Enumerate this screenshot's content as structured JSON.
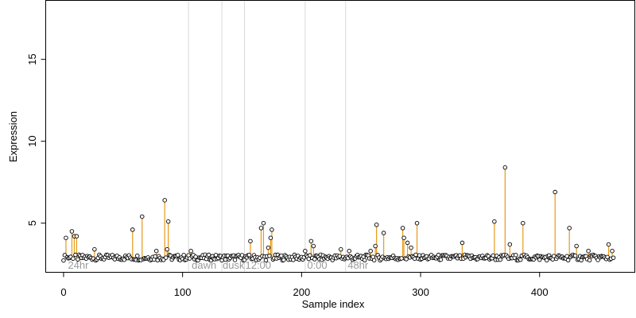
{
  "chart_data": {
    "type": "scatter",
    "xlabel": "Sample index",
    "ylabel": "Expression",
    "xlim": [
      -15,
      480
    ],
    "ylim": [
      2.0,
      18.6
    ],
    "x_ticks": [
      0,
      100,
      200,
      300,
      400
    ],
    "y_ticks": [
      5,
      10,
      15
    ],
    "baseline": 2.9,
    "colors": {
      "stem": "#e69a19",
      "divider": "#d9d9d9",
      "region_label": "#9a9a9a",
      "point": "#000000"
    },
    "dividers": [
      105,
      133,
      152,
      203,
      237
    ],
    "region_labels": [
      {
        "x": 3,
        "text": "24hr"
      },
      {
        "x": 107,
        "text": "dawn"
      },
      {
        "x": 133,
        "text": "dusk"
      },
      {
        "x": 152,
        "text": "12:00"
      },
      {
        "x": 204,
        "text": "0:00"
      },
      {
        "x": 238,
        "text": "48hr"
      }
    ],
    "peaks": [
      {
        "x": 2,
        "y": 4.1
      },
      {
        "x": 7,
        "y": 4.5
      },
      {
        "x": 9,
        "y": 4.2
      },
      {
        "x": 11,
        "y": 4.2
      },
      {
        "x": 26,
        "y": 3.4
      },
      {
        "x": 58,
        "y": 4.6
      },
      {
        "x": 66,
        "y": 5.4
      },
      {
        "x": 78,
        "y": 3.3
      },
      {
        "x": 85,
        "y": 6.4
      },
      {
        "x": 87,
        "y": 3.4
      },
      {
        "x": 88,
        "y": 5.1
      },
      {
        "x": 107,
        "y": 3.3
      },
      {
        "x": 157,
        "y": 3.9
      },
      {
        "x": 166,
        "y": 4.7
      },
      {
        "x": 168,
        "y": 5.0
      },
      {
        "x": 172,
        "y": 3.5
      },
      {
        "x": 174,
        "y": 4.1
      },
      {
        "x": 175,
        "y": 4.6
      },
      {
        "x": 203,
        "y": 3.3
      },
      {
        "x": 208,
        "y": 3.9
      },
      {
        "x": 210,
        "y": 3.6
      },
      {
        "x": 233,
        "y": 3.4
      },
      {
        "x": 240,
        "y": 3.3
      },
      {
        "x": 258,
        "y": 3.3
      },
      {
        "x": 262,
        "y": 3.6
      },
      {
        "x": 263,
        "y": 4.9
      },
      {
        "x": 269,
        "y": 4.4
      },
      {
        "x": 285,
        "y": 4.7
      },
      {
        "x": 286,
        "y": 4.1
      },
      {
        "x": 289,
        "y": 3.8
      },
      {
        "x": 292,
        "y": 3.5
      },
      {
        "x": 297,
        "y": 5.0
      },
      {
        "x": 335,
        "y": 3.8
      },
      {
        "x": 362,
        "y": 5.1
      },
      {
        "x": 371,
        "y": 8.4
      },
      {
        "x": 375,
        "y": 3.7
      },
      {
        "x": 386,
        "y": 5.0
      },
      {
        "x": 413,
        "y": 6.9
      },
      {
        "x": 425,
        "y": 4.7
      },
      {
        "x": 431,
        "y": 3.6
      },
      {
        "x": 441,
        "y": 3.3
      },
      {
        "x": 458,
        "y": 3.7
      },
      {
        "x": 461,
        "y": 3.3
      }
    ]
  }
}
